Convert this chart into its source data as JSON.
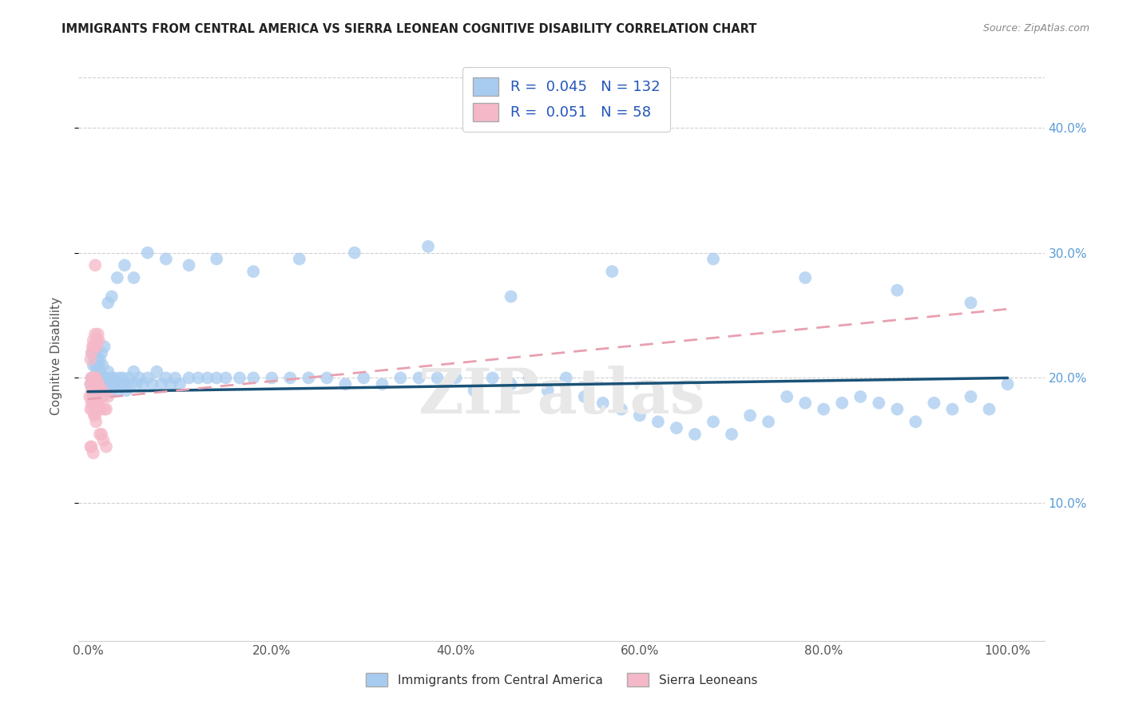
{
  "title": "IMMIGRANTS FROM CENTRAL AMERICA VS SIERRA LEONEAN COGNITIVE DISABILITY CORRELATION CHART",
  "source": "Source: ZipAtlas.com",
  "ylabel": "Cognitive Disability",
  "x_tick_labels": [
    "0.0%",
    "20.0%",
    "40.0%",
    "60.0%",
    "80.0%",
    "100.0%"
  ],
  "x_tick_values": [
    0.0,
    0.2,
    0.4,
    0.6,
    0.8,
    1.0
  ],
  "y_tick_labels": [
    "10.0%",
    "20.0%",
    "30.0%",
    "40.0%"
  ],
  "y_tick_values": [
    0.1,
    0.2,
    0.3,
    0.4
  ],
  "xlim": [
    -0.01,
    1.04
  ],
  "ylim": [
    -0.01,
    0.445
  ],
  "legend_label_blue": "Immigrants from Central America",
  "legend_label_pink": "Sierra Leoneans",
  "legend_r_blue": "0.045",
  "legend_n_blue": "132",
  "legend_r_pink": "0.051",
  "legend_n_pink": "58",
  "blue_color": "#a8ccf0",
  "pink_color": "#f5b8c8",
  "blue_line_color": "#1a5276",
  "pink_line_color": "#e8a0b0",
  "watermark": "ZIPatlas",
  "blue_scatter": {
    "x": [
      0.003,
      0.004,
      0.005,
      0.006,
      0.007,
      0.008,
      0.008,
      0.009,
      0.009,
      0.01,
      0.01,
      0.011,
      0.011,
      0.012,
      0.012,
      0.012,
      0.013,
      0.013,
      0.014,
      0.014,
      0.015,
      0.015,
      0.016,
      0.016,
      0.017,
      0.018,
      0.018,
      0.019,
      0.02,
      0.021,
      0.022,
      0.023,
      0.024,
      0.025,
      0.026,
      0.027,
      0.028,
      0.03,
      0.032,
      0.034,
      0.036,
      0.038,
      0.04,
      0.042,
      0.045,
      0.047,
      0.05,
      0.053,
      0.056,
      0.06,
      0.065,
      0.07,
      0.075,
      0.08,
      0.085,
      0.09,
      0.095,
      0.1,
      0.11,
      0.12,
      0.13,
      0.14,
      0.15,
      0.165,
      0.18,
      0.2,
      0.22,
      0.24,
      0.26,
      0.28,
      0.3,
      0.32,
      0.34,
      0.36,
      0.38,
      0.4,
      0.42,
      0.44,
      0.46,
      0.48,
      0.5,
      0.52,
      0.54,
      0.56,
      0.58,
      0.6,
      0.62,
      0.64,
      0.66,
      0.68,
      0.7,
      0.72,
      0.74,
      0.76,
      0.78,
      0.8,
      0.82,
      0.84,
      0.86,
      0.88,
      0.9,
      0.92,
      0.94,
      0.96,
      0.98,
      1.0,
      0.005,
      0.007,
      0.009,
      0.011,
      0.013,
      0.015,
      0.018,
      0.022,
      0.026,
      0.032,
      0.04,
      0.05,
      0.065,
      0.085,
      0.11,
      0.14,
      0.18,
      0.23,
      0.29,
      0.37,
      0.46,
      0.57,
      0.68,
      0.78,
      0.88,
      0.96
    ],
    "y": [
      0.195,
      0.2,
      0.185,
      0.21,
      0.19,
      0.2,
      0.185,
      0.195,
      0.21,
      0.195,
      0.205,
      0.195,
      0.185,
      0.2,
      0.21,
      0.19,
      0.195,
      0.205,
      0.19,
      0.2,
      0.195,
      0.185,
      0.2,
      0.21,
      0.195,
      0.2,
      0.19,
      0.195,
      0.2,
      0.195,
      0.205,
      0.19,
      0.195,
      0.2,
      0.19,
      0.195,
      0.2,
      0.195,
      0.19,
      0.2,
      0.195,
      0.2,
      0.195,
      0.19,
      0.2,
      0.195,
      0.205,
      0.195,
      0.2,
      0.195,
      0.2,
      0.195,
      0.205,
      0.195,
      0.2,
      0.195,
      0.2,
      0.195,
      0.2,
      0.2,
      0.2,
      0.2,
      0.2,
      0.2,
      0.2,
      0.2,
      0.2,
      0.2,
      0.2,
      0.195,
      0.2,
      0.195,
      0.2,
      0.2,
      0.2,
      0.2,
      0.19,
      0.2,
      0.195,
      0.2,
      0.19,
      0.2,
      0.185,
      0.18,
      0.175,
      0.17,
      0.165,
      0.16,
      0.155,
      0.165,
      0.155,
      0.17,
      0.165,
      0.185,
      0.18,
      0.175,
      0.18,
      0.185,
      0.18,
      0.175,
      0.165,
      0.18,
      0.175,
      0.185,
      0.175,
      0.195,
      0.22,
      0.215,
      0.22,
      0.215,
      0.215,
      0.22,
      0.225,
      0.26,
      0.265,
      0.28,
      0.29,
      0.28,
      0.3,
      0.295,
      0.29,
      0.295,
      0.285,
      0.295,
      0.3,
      0.305,
      0.265,
      0.285,
      0.295,
      0.28,
      0.27,
      0.26
    ]
  },
  "pink_scatter": {
    "x": [
      0.002,
      0.003,
      0.003,
      0.004,
      0.004,
      0.004,
      0.005,
      0.005,
      0.005,
      0.006,
      0.006,
      0.006,
      0.007,
      0.007,
      0.007,
      0.007,
      0.008,
      0.008,
      0.008,
      0.008,
      0.009,
      0.009,
      0.009,
      0.009,
      0.01,
      0.01,
      0.01,
      0.011,
      0.011,
      0.012,
      0.012,
      0.013,
      0.013,
      0.014,
      0.015,
      0.016,
      0.017,
      0.018,
      0.02,
      0.022,
      0.003,
      0.004,
      0.005,
      0.006,
      0.007,
      0.008,
      0.009,
      0.01,
      0.011,
      0.012,
      0.013,
      0.015,
      0.017,
      0.02,
      0.003,
      0.004,
      0.006,
      0.008
    ],
    "y": [
      0.185,
      0.195,
      0.175,
      0.19,
      0.2,
      0.18,
      0.195,
      0.185,
      0.175,
      0.2,
      0.19,
      0.18,
      0.2,
      0.19,
      0.18,
      0.17,
      0.2,
      0.19,
      0.18,
      0.17,
      0.2,
      0.19,
      0.18,
      0.165,
      0.195,
      0.185,
      0.175,
      0.19,
      0.18,
      0.195,
      0.175,
      0.19,
      0.175,
      0.185,
      0.185,
      0.19,
      0.185,
      0.175,
      0.175,
      0.185,
      0.215,
      0.22,
      0.225,
      0.23,
      0.225,
      0.235,
      0.225,
      0.23,
      0.235,
      0.23,
      0.155,
      0.155,
      0.15,
      0.145,
      0.145,
      0.145,
      0.14,
      0.29
    ]
  },
  "blue_line_x": [
    0.0,
    1.0
  ],
  "blue_line_y": [
    0.189,
    0.2
  ],
  "pink_line_x": [
    0.0,
    1.0
  ],
  "pink_line_y": [
    0.183,
    0.255
  ]
}
